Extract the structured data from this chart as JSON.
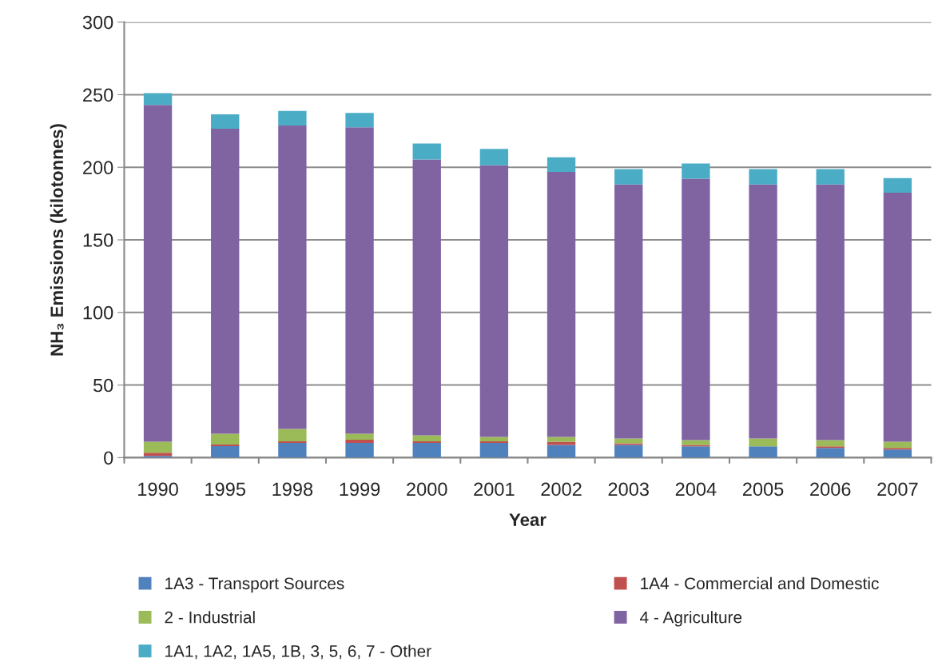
{
  "chart_data": {
    "type": "bar",
    "stacked": true,
    "xlabel": "Year",
    "ylabel": "NH₃ Emissions (kilotonnes)",
    "categories": [
      "1990",
      "1995",
      "1998",
      "1999",
      "2000",
      "2001",
      "2002",
      "2003",
      "2004",
      "2005",
      "2006",
      "2007"
    ],
    "series": [
      {
        "name": "1A3 - Transport Sources",
        "color": "#4f81bd",
        "values": [
          1.1,
          7.9,
          10.1,
          10.1,
          10.1,
          10.1,
          8.8,
          8.8,
          7.7,
          7.7,
          6.6,
          5.5
        ]
      },
      {
        "name": "1A4 - Commercial and Domestic",
        "color": "#c0504d",
        "values": [
          2.2,
          1.1,
          1.1,
          2.2,
          1.1,
          1.1,
          2.2,
          1.1,
          1.1,
          0,
          1.1,
          1.1
        ]
      },
      {
        "name": "2 - Industrial",
        "color": "#9bbb59",
        "values": [
          7.7,
          7.5,
          8.6,
          4.2,
          4.2,
          3.1,
          3.3,
          3.3,
          3.3,
          5.5,
          4.4,
          4.4
        ]
      },
      {
        "name": "4 - Agriculture",
        "color": "#8064a2",
        "values": [
          232,
          210,
          209,
          211,
          190,
          187,
          182.5,
          175,
          180,
          175,
          176,
          171.5
        ]
      },
      {
        "name": "1A1, 1A2, 1A5, 1B, 3, 5, 6, 7 - Other",
        "color": "#4bacc6",
        "values": [
          8,
          10,
          10,
          10,
          11,
          11.4,
          10,
          10.6,
          10.5,
          10.6,
          10.6,
          10
        ]
      }
    ],
    "ylim": [
      0,
      300
    ],
    "yticks": [
      0,
      50,
      100,
      150,
      200,
      250,
      300
    ],
    "grid": "y",
    "legend": "bottom"
  }
}
